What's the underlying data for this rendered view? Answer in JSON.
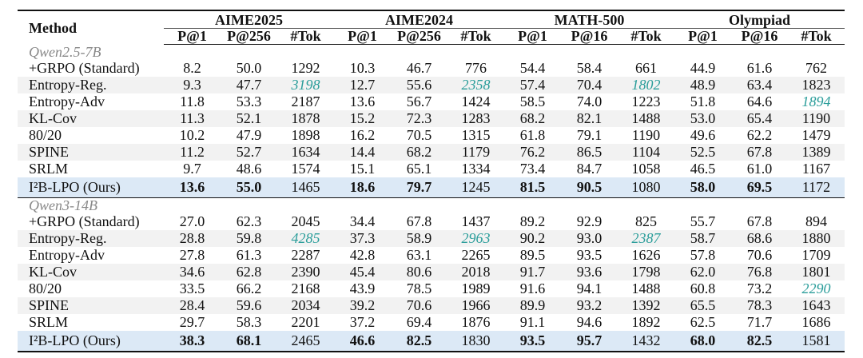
{
  "table": {
    "method_header": "Method",
    "groups": [
      {
        "name": "AIME2025",
        "cols": [
          "P@1",
          "P@256",
          "#Tok"
        ]
      },
      {
        "name": "AIME2024",
        "cols": [
          "P@1",
          "P@256",
          "#Tok"
        ]
      },
      {
        "name": "MATH-500",
        "cols": [
          "P@1",
          "P@16",
          "#Tok"
        ]
      },
      {
        "name": "Olympiad",
        "cols": [
          "P@1",
          "P@16",
          "#Tok"
        ]
      }
    ],
    "highlight_color": "#2a9d9a",
    "ours_color": "#dce9f6",
    "sections": [
      {
        "label": "Qwen2.5-7B",
        "highlight": [
          [
            1,
            3
          ],
          [
            1,
            6
          ],
          [
            1,
            9
          ],
          [
            2,
            12
          ]
        ],
        "rows": [
          [
            "+GRPO (Standard)",
            "8.2",
            "50.0",
            "1292",
            "10.3",
            "46.7",
            "776",
            "54.4",
            "58.4",
            "661",
            "44.9",
            "61.6",
            "762"
          ],
          [
            "Entropy-Reg.",
            "9.3",
            "47.7",
            "3198",
            "12.7",
            "55.6",
            "2358",
            "57.4",
            "70.4",
            "1802",
            "48.9",
            "63.4",
            "1823"
          ],
          [
            "Entropy-Adv",
            "11.8",
            "53.3",
            "2187",
            "13.6",
            "56.7",
            "1424",
            "58.5",
            "74.0",
            "1223",
            "51.8",
            "64.6",
            "1894"
          ],
          [
            "KL-Cov",
            "11.3",
            "52.1",
            "1878",
            "15.2",
            "72.3",
            "1283",
            "68.2",
            "82.1",
            "1488",
            "53.0",
            "65.4",
            "1190"
          ],
          [
            "80/20",
            "10.2",
            "47.9",
            "1898",
            "16.2",
            "70.5",
            "1315",
            "61.8",
            "79.1",
            "1190",
            "49.6",
            "62.2",
            "1479"
          ],
          [
            "SPINE",
            "11.2",
            "52.7",
            "1634",
            "14.4",
            "68.2",
            "1179",
            "76.2",
            "86.5",
            "1104",
            "52.5",
            "67.8",
            "1389"
          ],
          [
            "SRLM",
            "9.7",
            "48.6",
            "1574",
            "15.1",
            "65.1",
            "1334",
            "73.4",
            "84.7",
            "1058",
            "46.5",
            "61.0",
            "1167"
          ],
          [
            "I²B-LPO (Ours)",
            "13.6",
            "55.0",
            "1465",
            "18.6",
            "79.7",
            "1245",
            "81.5",
            "90.5",
            "1080",
            "58.0",
            "69.5",
            "1172"
          ]
        ]
      },
      {
        "label": "Qwen3-14B",
        "highlight": [
          [
            1,
            3
          ],
          [
            1,
            6
          ],
          [
            1,
            9
          ],
          [
            4,
            12
          ]
        ],
        "rows": [
          [
            "+GRPO (Standard)",
            "27.0",
            "62.3",
            "2045",
            "34.4",
            "67.8",
            "1437",
            "89.2",
            "92.9",
            "825",
            "55.7",
            "67.8",
            "894"
          ],
          [
            "Entropy-Reg.",
            "28.8",
            "59.8",
            "4285",
            "37.3",
            "58.9",
            "2963",
            "90.2",
            "93.0",
            "2387",
            "58.7",
            "68.6",
            "1880"
          ],
          [
            "Entropy-Adv",
            "27.8",
            "61.3",
            "2287",
            "42.8",
            "63.1",
            "2265",
            "89.5",
            "93.5",
            "1626",
            "57.8",
            "70.6",
            "1709"
          ],
          [
            "KL-Cov",
            "34.6",
            "62.8",
            "2390",
            "45.4",
            "80.6",
            "2018",
            "91.7",
            "93.6",
            "1798",
            "62.0",
            "76.8",
            "1801"
          ],
          [
            "80/20",
            "33.5",
            "66.2",
            "2168",
            "43.9",
            "78.5",
            "1989",
            "91.6",
            "94.1",
            "1488",
            "60.8",
            "73.2",
            "2290"
          ],
          [
            "SPINE",
            "28.4",
            "59.6",
            "2034",
            "39.2",
            "70.6",
            "1966",
            "89.9",
            "93.2",
            "1392",
            "65.5",
            "78.3",
            "1643"
          ],
          [
            "SRLM",
            "29.7",
            "58.3",
            "2201",
            "37.2",
            "69.4",
            "1876",
            "91.1",
            "94.6",
            "1892",
            "62.5",
            "71.7",
            "1686"
          ],
          [
            "I²B-LPO (Ours)",
            "38.3",
            "68.1",
            "2465",
            "46.6",
            "82.5",
            "1830",
            "93.5",
            "95.7",
            "1432",
            "68.0",
            "82.5",
            "1581"
          ]
        ]
      }
    ]
  }
}
